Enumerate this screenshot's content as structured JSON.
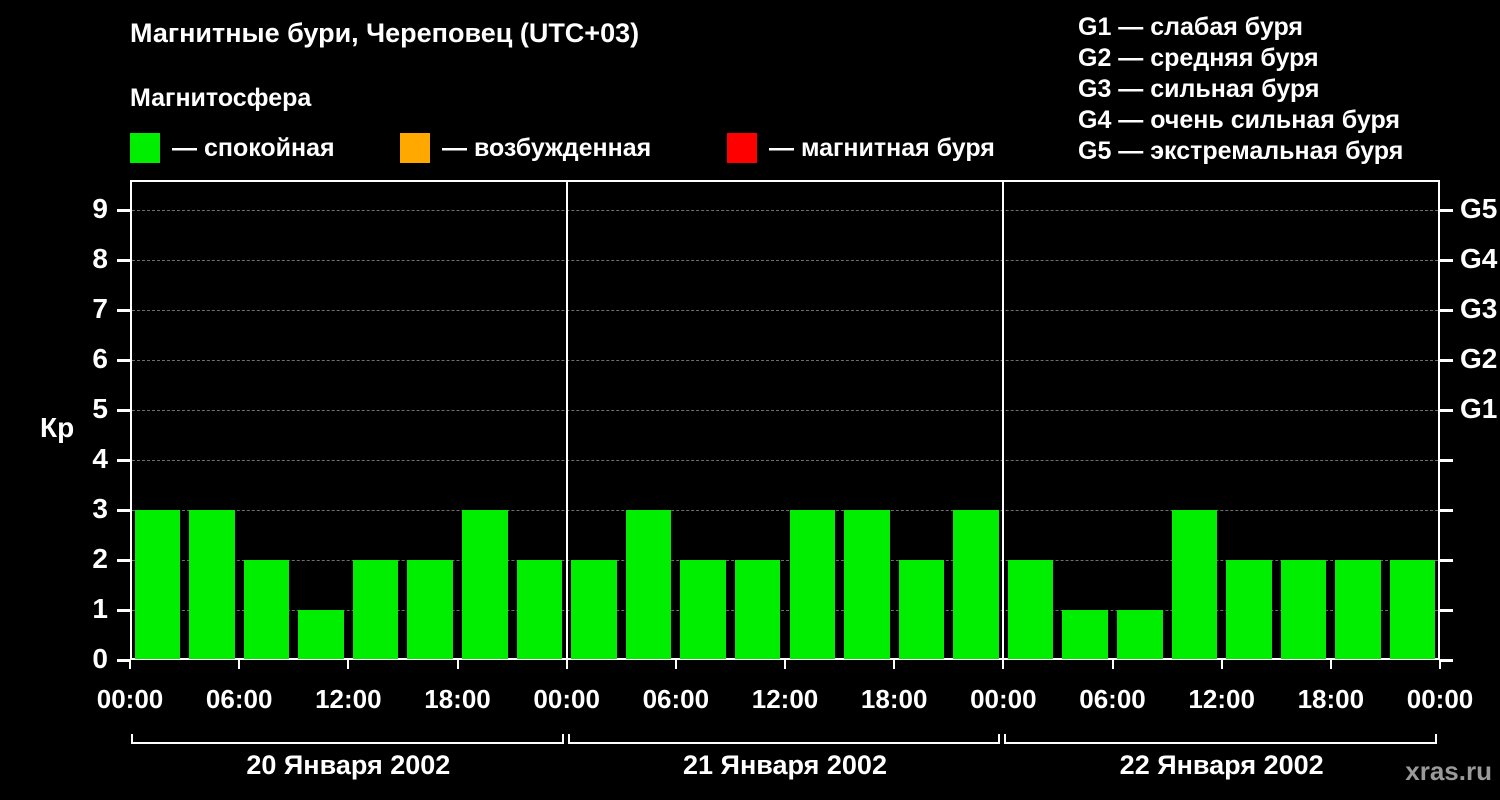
{
  "title": "Магнитные бури, Череповец (UTC+03)",
  "subtitle": "Магнитосфера",
  "legend": {
    "items": [
      {
        "label": "— спокойная",
        "color": "#00ee00",
        "state": "quiet"
      },
      {
        "label": "— возбужденная",
        "color": "#ffa800",
        "state": "excited"
      },
      {
        "label": "— магнитная буря",
        "color": "#ff0000",
        "state": "storm"
      }
    ]
  },
  "storm_legend": [
    "G1 — слабая буря",
    "G2 — средняя буря",
    "G3 — сильная буря",
    "G4 — очень сильная буря",
    "G5 — экстремальная буря"
  ],
  "watermark": "xras.ru",
  "chart_data": {
    "type": "bar",
    "title": "Магнитные бури, Череповец (UTC+03)",
    "ylabel": "Кр",
    "ylim": [
      0,
      9.6
    ],
    "yticks": [
      0,
      1,
      2,
      3,
      4,
      5,
      6,
      7,
      8,
      9
    ],
    "right_axis": [
      {
        "label": "G1",
        "value": 5
      },
      {
        "label": "G2",
        "value": 6
      },
      {
        "label": "G3",
        "value": 7
      },
      {
        "label": "G4",
        "value": 8
      },
      {
        "label": "G5",
        "value": 9
      }
    ],
    "interval_hours": 3,
    "x_tick_labels": [
      "00:00",
      "06:00",
      "12:00",
      "18:00"
    ],
    "final_tick_label": "00:00",
    "grid": true,
    "days": [
      {
        "date": "20 Января 2002",
        "values": [
          3,
          3,
          2,
          1,
          2,
          2,
          3,
          2
        ]
      },
      {
        "date": "21 Января 2002",
        "values": [
          2,
          3,
          2,
          2,
          3,
          3,
          2,
          3
        ]
      },
      {
        "date": "22 Января 2002",
        "values": [
          2,
          1,
          1,
          3,
          2,
          2,
          2,
          2
        ]
      }
    ]
  }
}
